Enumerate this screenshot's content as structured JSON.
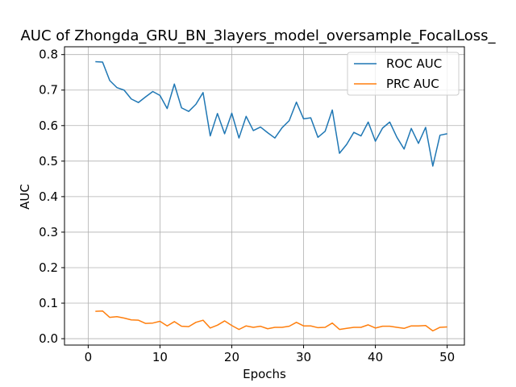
{
  "chart_data": {
    "type": "line",
    "title": "AUC of Zhongda_GRU_BN_3layers_model_oversample_FocalLoss_",
    "xlabel": "Epochs",
    "ylabel": "AUC",
    "xlim": [
      -3.3,
      52.4
    ],
    "ylim": [
      -0.018,
      0.822
    ],
    "xticks": [
      0,
      10,
      20,
      30,
      40,
      50
    ],
    "yticks": [
      0.0,
      0.1,
      0.2,
      0.3,
      0.4,
      0.5,
      0.6,
      0.7,
      0.8
    ],
    "grid": true,
    "legend_position": "upper right",
    "x": [
      1,
      2,
      3,
      4,
      5,
      6,
      7,
      8,
      9,
      10,
      11,
      12,
      13,
      14,
      15,
      16,
      17,
      18,
      19,
      20,
      21,
      22,
      23,
      24,
      25,
      26,
      27,
      28,
      29,
      30,
      31,
      32,
      33,
      34,
      35,
      36,
      37,
      38,
      39,
      40,
      41,
      42,
      43,
      44,
      45,
      46,
      47,
      48,
      49,
      50
    ],
    "series": [
      {
        "name": "ROC AUC",
        "color": "#1f77b4",
        "values": [
          0.78,
          0.779,
          0.727,
          0.707,
          0.7,
          0.675,
          0.665,
          0.681,
          0.696,
          0.685,
          0.648,
          0.717,
          0.65,
          0.64,
          0.66,
          0.693,
          0.571,
          0.634,
          0.577,
          0.635,
          0.565,
          0.626,
          0.586,
          0.596,
          0.58,
          0.565,
          0.594,
          0.614,
          0.666,
          0.619,
          0.622,
          0.567,
          0.584,
          0.644,
          0.522,
          0.547,
          0.581,
          0.571,
          0.61,
          0.556,
          0.593,
          0.61,
          0.567,
          0.534,
          0.592,
          0.55,
          0.595,
          0.486,
          0.573,
          0.577
        ]
      },
      {
        "name": "PRC AUC",
        "color": "#ff7f0e",
        "values": [
          0.077,
          0.078,
          0.06,
          0.062,
          0.058,
          0.053,
          0.052,
          0.043,
          0.044,
          0.049,
          0.036,
          0.048,
          0.035,
          0.034,
          0.046,
          0.052,
          0.03,
          0.038,
          0.05,
          0.037,
          0.026,
          0.036,
          0.032,
          0.035,
          0.028,
          0.032,
          0.032,
          0.035,
          0.046,
          0.036,
          0.036,
          0.031,
          0.032,
          0.044,
          0.026,
          0.029,
          0.032,
          0.032,
          0.039,
          0.03,
          0.035,
          0.035,
          0.032,
          0.029,
          0.036,
          0.036,
          0.037,
          0.022,
          0.032,
          0.033
        ]
      }
    ]
  }
}
